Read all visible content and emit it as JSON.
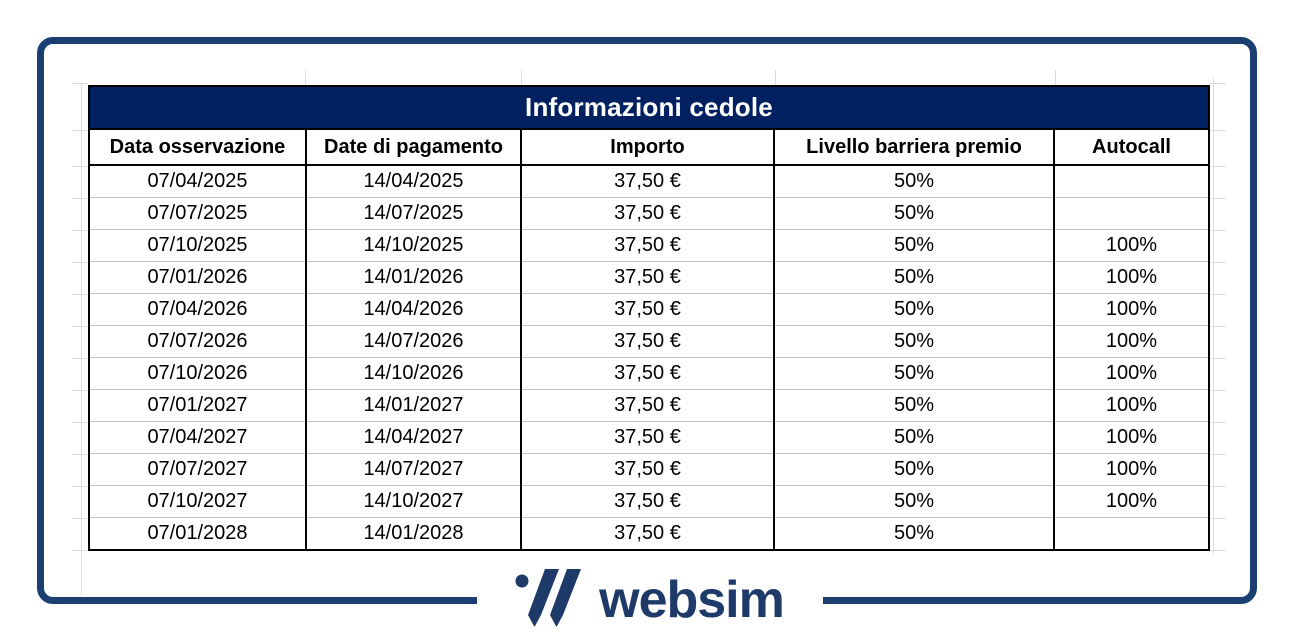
{
  "chart_data": {
    "type": "table",
    "title": "Informazioni cedole",
    "columns": [
      "Data osservazione",
      "Date di pagamento",
      "Importo",
      "Livello barriera premio",
      "Autocall"
    ],
    "rows": [
      [
        "07/04/2025",
        "14/04/2025",
        "37,50 €",
        "50%",
        ""
      ],
      [
        "07/07/2025",
        "14/07/2025",
        "37,50 €",
        "50%",
        ""
      ],
      [
        "07/10/2025",
        "14/10/2025",
        "37,50 €",
        "50%",
        "100%"
      ],
      [
        "07/01/2026",
        "14/01/2026",
        "37,50 €",
        "50%",
        "100%"
      ],
      [
        "07/04/2026",
        "14/04/2026",
        "37,50 €",
        "50%",
        "100%"
      ],
      [
        "07/07/2026",
        "14/07/2026",
        "37,50 €",
        "50%",
        "100%"
      ],
      [
        "07/10/2026",
        "14/10/2026",
        "37,50 €",
        "50%",
        "100%"
      ],
      [
        "07/01/2027",
        "14/01/2027",
        "37,50 €",
        "50%",
        "100%"
      ],
      [
        "07/04/2027",
        "14/04/2027",
        "37,50 €",
        "50%",
        "100%"
      ],
      [
        "07/07/2027",
        "14/07/2027",
        "37,50 €",
        "50%",
        "100%"
      ],
      [
        "07/10/2027",
        "14/10/2027",
        "37,50 €",
        "50%",
        "100%"
      ],
      [
        "07/01/2028",
        "14/01/2028",
        "37,50 €",
        "50%",
        ""
      ]
    ]
  },
  "footer": {
    "logo_text": "websim"
  },
  "colors": {
    "title_bg": "#002060",
    "title_text": "#ffffff",
    "table_border": "#000000",
    "row_divider": "#c8c8c8",
    "frame_border": "#1b3f70",
    "logo_navy": "#1e3a68"
  }
}
